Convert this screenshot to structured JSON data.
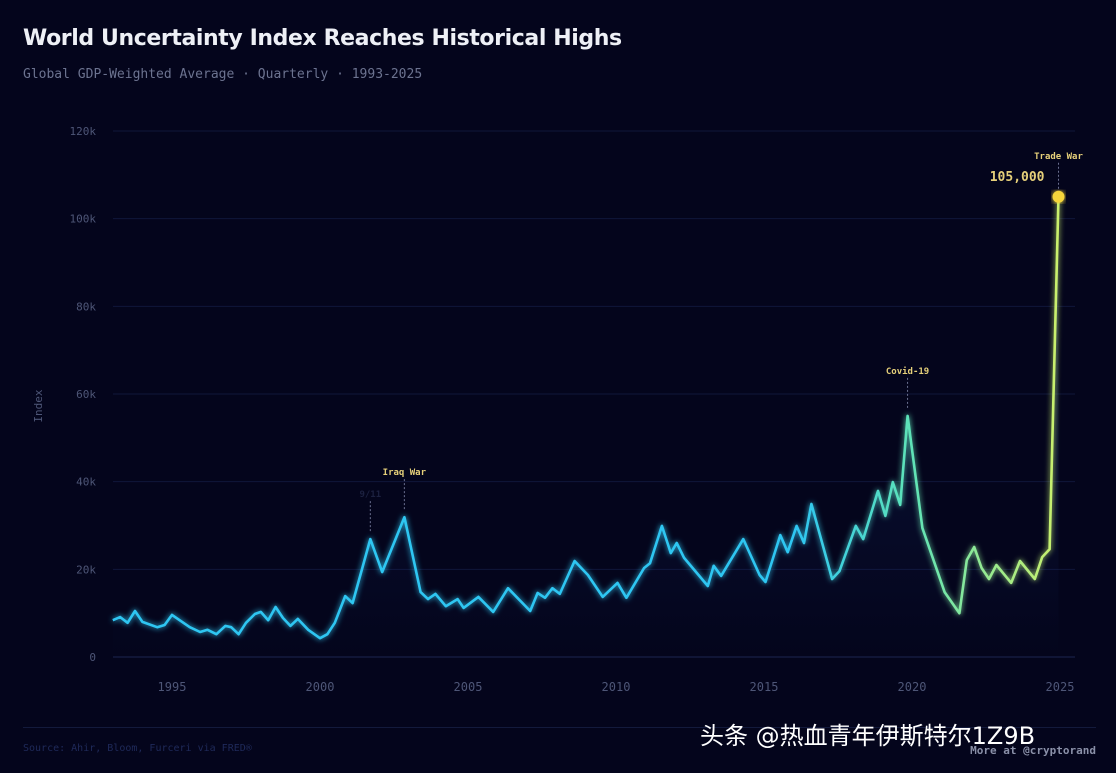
{
  "header": {
    "title": "World Uncertainty Index Reaches Historical Highs",
    "subtitle": "Global GDP-Weighted Average · Quarterly · 1993-2025"
  },
  "footer": {
    "source": "Source: Ahir, Bloom, Furceri via FRED®",
    "more": "More at @cryptorand"
  },
  "watermark": "头条 @热血青年伊斯特尔1Z9B",
  "chart_data": {
    "type": "line",
    "title": "World Uncertainty Index Reaches Historical Highs",
    "ylabel": "Index",
    "xlabel": "",
    "xlim": [
      1993,
      2025.3
    ],
    "ylim": [
      0,
      120000
    ],
    "xticks": [
      1995,
      2000,
      2005,
      2010,
      2015,
      2020,
      2025
    ],
    "yticks": [
      0,
      20000,
      40000,
      60000,
      80000,
      100000,
      120000
    ],
    "ytick_labels": [
      "0",
      "20k",
      "40k",
      "60k",
      "80k",
      "100k",
      "120k"
    ],
    "grid": "horizontal",
    "colors": {
      "line_start": "#2fc6f2",
      "line_mid": "#5ee3b8",
      "line_end": "#cdf06a",
      "highlight": "#f5d53a",
      "annotation": "#e6d07a"
    },
    "x": [
      1993.0,
      1993.25,
      1993.5,
      1993.75,
      1994.0,
      1994.5,
      1994.75,
      1995.0,
      1995.6,
      1995.95,
      1996.2,
      1996.5,
      1996.8,
      1997.0,
      1997.25,
      1997.5,
      1997.8,
      1998.0,
      1998.25,
      1998.5,
      1998.75,
      1999.0,
      1999.25,
      1999.6,
      2000.0,
      2000.25,
      2000.5,
      2000.85,
      2001.1,
      2001.7,
      2002.1,
      2002.85,
      2003.4,
      2003.65,
      2003.9,
      2004.25,
      2004.65,
      2004.85,
      2005.35,
      2005.85,
      2006.35,
      2007.1,
      2007.35,
      2007.6,
      2007.85,
      2008.1,
      2008.6,
      2009.05,
      2009.55,
      2010.05,
      2010.35,
      2010.95,
      2011.15,
      2011.55,
      2011.85,
      2012.05,
      2012.3,
      2013.1,
      2013.3,
      2013.55,
      2014.3,
      2014.85,
      2015.05,
      2015.55,
      2015.8,
      2016.1,
      2016.35,
      2016.6,
      2017.3,
      2017.55,
      2018.1,
      2018.35,
      2018.85,
      2019.1,
      2019.35,
      2019.6,
      2019.85,
      2020.35,
      2021.1,
      2021.6,
      2021.85,
      2022.1,
      2022.35,
      2022.6,
      2022.85,
      2023.35,
      2023.65,
      2024.15,
      2024.4,
      2024.65,
      2024.95
    ],
    "values": [
      8400,
      9100,
      7800,
      10500,
      8000,
      6800,
      7300,
      9600,
      6800,
      5700,
      6200,
      5200,
      7100,
      6800,
      5200,
      7800,
      9800,
      10300,
      8400,
      11400,
      8900,
      7100,
      8700,
      6200,
      4300,
      5200,
      7800,
      13900,
      12300,
      26900,
      19400,
      31900,
      14800,
      13200,
      14400,
      11600,
      13200,
      11200,
      13700,
      10300,
      15700,
      10500,
      14600,
      13500,
      15700,
      14400,
      21900,
      18700,
      13700,
      16900,
      13500,
      20300,
      21400,
      29900,
      23700,
      26000,
      22600,
      16200,
      20800,
      18500,
      26900,
      18700,
      17100,
      27800,
      23900,
      29900,
      26000,
      34900,
      17800,
      19600,
      29900,
      26900,
      37900,
      32200,
      39900,
      34700,
      55000,
      29400,
      14800,
      10000,
      22100,
      25100,
      20300,
      17800,
      21000,
      16900,
      21900,
      17800,
      22800,
      24600,
      105000
    ],
    "annotations": [
      {
        "label": "9/11",
        "x": 2001.7,
        "y": 26900
      },
      {
        "label": "Iraq War",
        "x": 2002.85,
        "y": 31900
      },
      {
        "label": "Covid-19",
        "x": 2019.85,
        "y": 55000
      },
      {
        "label": "Trade War",
        "x": 2024.95,
        "y": 105000,
        "value_label": "105,000"
      }
    ]
  }
}
